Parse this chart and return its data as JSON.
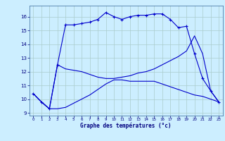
{
  "xlabel": "Graphe des températures (°c)",
  "bg_color": "#cceeff",
  "grid_color": "#aacccc",
  "line_color": "#0000cc",
  "ylim": [
    8.8,
    16.8
  ],
  "xlim": [
    -0.5,
    23.5
  ],
  "yticks": [
    9,
    10,
    11,
    12,
    13,
    14,
    15,
    16
  ],
  "xticks": [
    0,
    1,
    2,
    3,
    4,
    5,
    6,
    7,
    8,
    9,
    10,
    11,
    12,
    13,
    14,
    15,
    16,
    17,
    18,
    19,
    20,
    21,
    22,
    23
  ],
  "series1_x": [
    0,
    1,
    2,
    3,
    4,
    5,
    6,
    7,
    8,
    9,
    10,
    11,
    12,
    13,
    14,
    15,
    16,
    17,
    18,
    19,
    20,
    21,
    22,
    23
  ],
  "series1_y": [
    10.4,
    9.8,
    9.3,
    12.5,
    15.4,
    15.4,
    15.5,
    15.6,
    15.8,
    16.3,
    16.0,
    15.8,
    16.0,
    16.1,
    16.1,
    16.2,
    16.2,
    15.8,
    15.2,
    15.3,
    13.3,
    11.5,
    10.6,
    9.8
  ],
  "series2_x": [
    0,
    1,
    2,
    3,
    4,
    5,
    6,
    7,
    8,
    9,
    10,
    11,
    12,
    13,
    14,
    15,
    16,
    17,
    18,
    19,
    20,
    21,
    22,
    23
  ],
  "series2_y": [
    10.4,
    9.8,
    9.3,
    9.3,
    9.4,
    9.7,
    10.0,
    10.3,
    10.7,
    11.1,
    11.4,
    11.4,
    11.3,
    11.3,
    11.3,
    11.3,
    11.1,
    10.9,
    10.7,
    10.5,
    10.3,
    10.2,
    10.0,
    9.8
  ],
  "series3_x": [
    0,
    1,
    2,
    3,
    4,
    5,
    6,
    7,
    8,
    9,
    10,
    11,
    12,
    13,
    14,
    15,
    16,
    17,
    18,
    19,
    20,
    21,
    22,
    23
  ],
  "series3_y": [
    10.4,
    9.8,
    9.3,
    12.5,
    12.2,
    12.1,
    12.0,
    11.8,
    11.6,
    11.5,
    11.5,
    11.6,
    11.7,
    11.9,
    12.0,
    12.2,
    12.5,
    12.8,
    13.1,
    13.5,
    14.6,
    13.3,
    10.6,
    9.8
  ]
}
